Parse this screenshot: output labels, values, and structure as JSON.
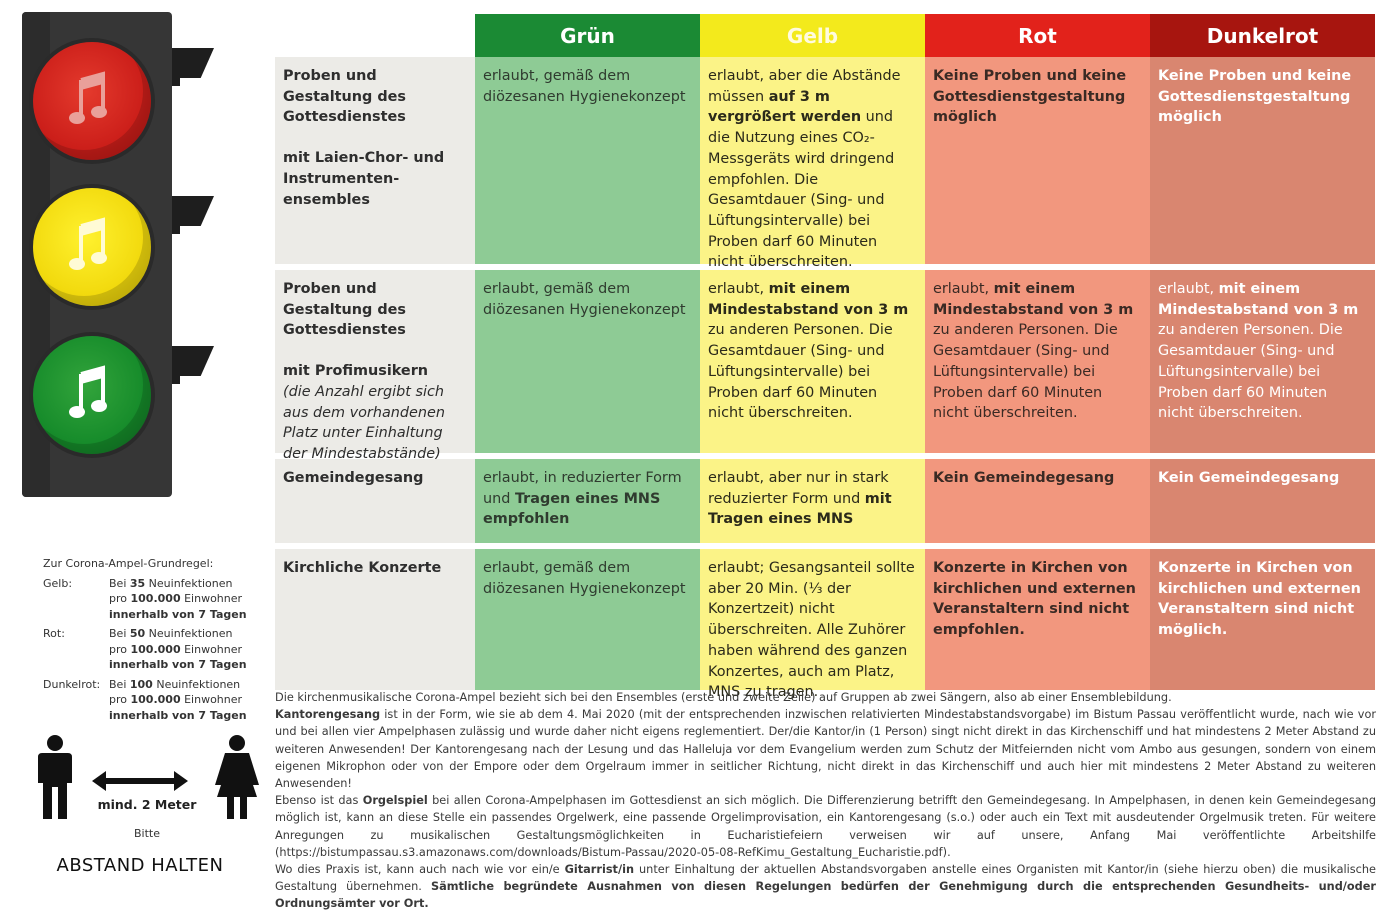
{
  "colors": {
    "gruen": "#1b8a34",
    "gelb": "#f3ea1c",
    "rot": "#e2221b",
    "dunkelrot": "#a7150f"
  },
  "icons": [
    "music-note-icon",
    "man-icon",
    "woman-icon",
    "double-arrow-icon"
  ],
  "table": {
    "headers": {
      "gruen": "Grün",
      "gelb": "Gelb",
      "rot": "Rot",
      "dunkelrot": "Dunkelrot"
    },
    "rows": [
      {
        "cat_title": "Proben und Gestaltung des Gottesdienstes",
        "cat_sub": "mit Laien-Chor- und Instrumenten-ensembles",
        "gruen": "erlaubt, gemäß dem diözesanen Hygienekonzept",
        "gelb_a": "erlaubt, aber die Abstände müssen ",
        "gelb_b": "auf 3 m vergrößert werden",
        "gelb_c": " und die Nutzung eines CO₂-Messgeräts wird dringend empfohlen. Die Gesamtdauer (Sing- und Lüftungsintervalle) bei Proben darf 60 Minuten nicht überschreiten.",
        "rot": "Keine Proben und keine Gottesdienstgestaltung möglich",
        "dunkelrot": "Keine Proben und keine Gottesdienstgestaltung möglich"
      },
      {
        "cat_title": "Proben und Gestaltung des Gottesdienstes",
        "cat_sub": "mit Profimusikern",
        "cat_note": "(die Anzahl ergibt sich aus dem vorhandenen Platz unter Einhaltung der Mindestabstände)",
        "gruen": "erlaubt, gemäß dem diözesanen Hygienekonzept",
        "gelb_a": "erlaubt, ",
        "gelb_b": "mit einem Mindestabstand von 3 m",
        "gelb_c": " zu anderen Personen. Die Gesamtdauer (Sing- und Lüftungsintervalle) bei Proben darf 60 Minuten nicht überschreiten.",
        "rot_a": "erlaubt, ",
        "rot_b": "mit einem Mindestabstand von 3 m",
        "rot_c": " zu anderen Personen. Die Gesamtdauer (Sing- und Lüftungsintervalle) bei Proben darf 60 Minuten nicht überschreiten.",
        "dunkelrot_a": "erlaubt, ",
        "dunkelrot_b": "mit einem Mindestabstand von 3 m",
        "dunkelrot_c": " zu anderen Personen. Die Gesamtdauer (Sing- und Lüftungsintervalle) bei Proben darf 60 Minuten nicht überschreiten."
      },
      {
        "cat_title": "Gemeindegesang",
        "gruen_a": "erlaubt, in reduzierter Form und ",
        "gruen_b": "Tragen eines MNS empfohlen",
        "gelb_a": "erlaubt, aber nur in stark reduzierter Form und ",
        "gelb_b": "mit Tragen eines MNS",
        "rot": "Kein Gemeindegesang",
        "dunkelrot": "Kein Gemeindegesang"
      },
      {
        "cat_title": "Kirchliche Konzerte",
        "gruen": "erlaubt, gemäß dem diözesanen Hygienekonzept",
        "gelb": "erlaubt; Gesangsanteil sollte aber 20 Min. (⅓ der Konzertzeit) nicht überschreiten. Alle Zuhörer haben während des ganzen Konzertes, auch am Platz, MNS zu tragen.",
        "rot": "Konzerte in Kirchen von kirchlichen und externen Veranstaltern sind nicht empfohlen.",
        "dunkelrot": "Konzerte in Kirchen von kirchlichen und externen Veranstaltern sind nicht möglich."
      }
    ]
  },
  "legend": {
    "title": "Zur Corona-Ampel-Grundregel:",
    "rows": [
      {
        "key": "Gelb:",
        "pre": "Bei ",
        "num": "35",
        "post": " Neuinfektionen",
        "per_pre": "pro ",
        "per": "100.000",
        "per_post": " Einwohner",
        "time": "innerhalb von 7 Tagen"
      },
      {
        "key": "Rot:",
        "pre": "Bei ",
        "num": "50",
        "post": " Neuinfektionen",
        "per_pre": "pro ",
        "per": "100.000",
        "per_post": " Einwohner",
        "time": "innerhalb von 7 Tagen"
      },
      {
        "key": "Dunkelrot:",
        "pre": "Bei ",
        "num": "100",
        "post": " Neuinfektionen",
        "per_pre": "pro ",
        "per": "100.000",
        "per_post": " Einwohner",
        "time": "innerhalb von 7 Tagen"
      }
    ]
  },
  "distance": {
    "label": "mind. 2 Meter",
    "please": "Bitte",
    "keep": "ABSTAND HALTEN"
  },
  "footnote": {
    "p1": "Die kirchenmusikalische Corona-Ampel bezieht sich bei den Ensembles (erste und zweite Zeile) auf Gruppen ab zwei Sängern, also ab einer Ensemblebildung.",
    "p2_b": "Kantorengesang",
    "p2": " ist in der Form, wie sie ab dem 4. Mai 2020 (mit der entsprechenden inzwischen relativierten Mindestabstandsvorgabe) im Bistum Passau veröffentlicht wurde, nach wie vor und bei allen vier Ampelphasen zulässig und wurde daher nicht eigens reglementiert. Der/die Kantor/in (1 Person) singt nicht direkt in das Kirchenschiff und hat mindestens 2 Meter Abstand zu weiteren Anwesenden! Der Kantorengesang nach der Lesung und das Halleluja vor dem Evangelium werden zum Schutz der Mitfeiernden nicht vom Ambo aus gesungen, sondern von einem eigenen Mikrophon oder von der Empore oder dem Orgelraum immer in seitlicher Richtung, nicht direkt in das Kirchenschiff und auch hier mit mindestens 2 Meter Abstand zu weiteren Anwesenden!",
    "p3_a": "Ebenso ist das ",
    "p3_b": "Orgelspiel",
    "p3_c": " bei allen Corona-Ampelphasen im Gottesdienst an sich möglich. Die Differenzierung betrifft den Gemeindegesang. In Ampelphasen, in denen kein Gemeindegesang möglich ist, kann an diese Stelle ein passendes Orgelwerk, eine passende Orgelimprovisation, ein Kantorengesang (s.o.) oder auch ein Text mit ausdeutender Orgelmusik treten. Für weitere Anregungen zu musikalischen Gestaltungsmöglichkeiten in Eucharistiefeiern verweisen wir auf unsere, Anfang Mai veröffentlichte Arbeitshilfe (https://bistumpassau.s3.amazonaws.com/downloads/Bistum-Passau/2020-05-08-RefKimu_Gestaltung_Eucharistie.pdf).",
    "p4_a": "Wo dies Praxis ist, kann auch nach wie vor ein/e ",
    "p4_b": "Gitarrist/in",
    "p4_c": " unter Einhaltung der aktuellen Abstandsvorgaben anstelle eines Organisten mit Kantor/in (siehe hierzu oben) die musikalische Gestaltung übernehmen. ",
    "p4_d": "Sämtliche begründete Ausnahmen von diesen Regelungen bedürfen der Genehmigung durch die entsprechenden Gesundheits- und/oder Ordnungsämter vor Ort."
  }
}
